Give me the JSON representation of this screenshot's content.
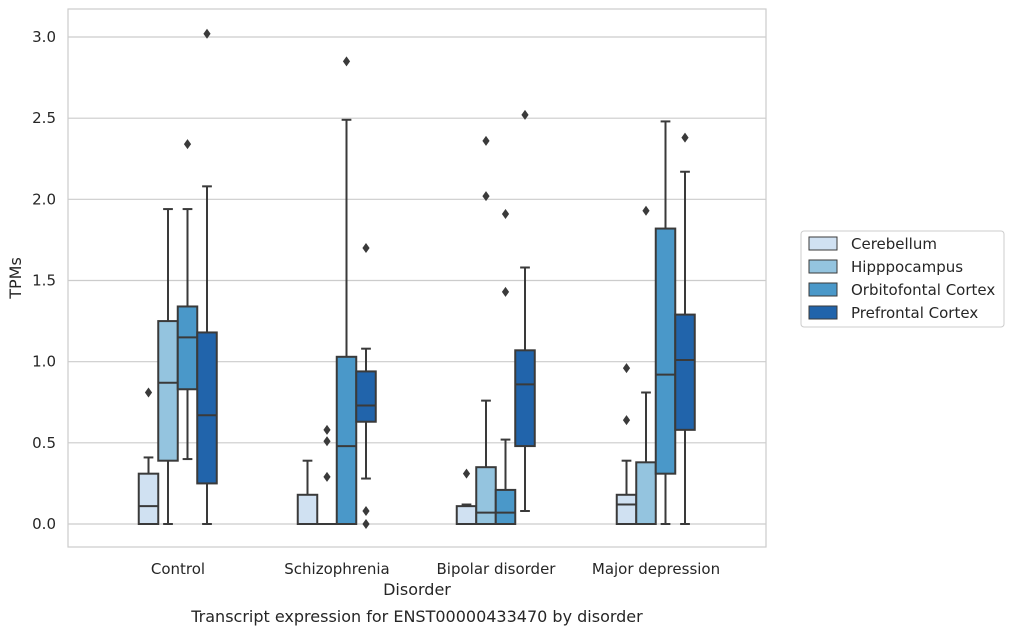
{
  "chart_data": {
    "type": "box",
    "title": "",
    "caption": "Transcript expression for ENST00000433470 by disorder",
    "xlabel": "Disorder",
    "ylabel": "TPMs",
    "ylim": [
      -0.15,
      3.18
    ],
    "yticks": [
      "0.0",
      "0.5",
      "1.0",
      "1.5",
      "2.0",
      "2.5",
      "3.0"
    ],
    "ytick_values": [
      0,
      0.5,
      1.0,
      1.5,
      2.0,
      2.5,
      3.0
    ],
    "grid": true,
    "legend_position": "right",
    "categories": [
      "Control",
      "Schizophrenia",
      "Bipolar disorder",
      "Major depression"
    ],
    "series": [
      {
        "name": "Cerebellum",
        "color": "#d0e1f2",
        "boxes": [
          {
            "q1": 0.0,
            "median": 0.11,
            "q3": 0.31,
            "whislo": 0.0,
            "whishi": 0.41,
            "fliers": [
              0.81
            ]
          },
          {
            "q1": 0.0,
            "median": 0.0,
            "q3": 0.18,
            "whislo": 0.0,
            "whishi": 0.39,
            "fliers": []
          },
          {
            "q1": 0.0,
            "median": 0.0,
            "q3": 0.11,
            "whislo": 0.0,
            "whishi": 0.12,
            "fliers": [
              0.31
            ]
          },
          {
            "q1": 0.0,
            "median": 0.12,
            "q3": 0.18,
            "whislo": 0.0,
            "whishi": 0.39,
            "fliers": [
              0.64,
              0.96
            ]
          }
        ]
      },
      {
        "name": "Hipppocampus",
        "color": "#94c4df",
        "boxes": [
          {
            "q1": 0.39,
            "median": 0.87,
            "q3": 1.25,
            "whislo": 0.0,
            "whishi": 1.94,
            "fliers": []
          },
          {
            "q1": 0.0,
            "median": 0.0,
            "q3": 0.0,
            "whislo": 0.0,
            "whishi": 0.0,
            "fliers": [
              0.29,
              0.51,
              0.58
            ]
          },
          {
            "q1": 0.0,
            "median": 0.07,
            "q3": 0.35,
            "whislo": 0.0,
            "whishi": 0.76,
            "fliers": [
              2.02,
              2.36
            ]
          },
          {
            "q1": 0.0,
            "median": 0.0,
            "q3": 0.38,
            "whislo": 0.0,
            "whishi": 0.81,
            "fliers": [
              1.93
            ]
          }
        ]
      },
      {
        "name": "Orbitofontal Cortex",
        "color": "#4a98c9",
        "boxes": [
          {
            "q1": 0.83,
            "median": 1.15,
            "q3": 1.34,
            "whislo": 0.4,
            "whishi": 1.94,
            "fliers": [
              2.34
            ]
          },
          {
            "q1": 0.0,
            "median": 0.48,
            "q3": 1.03,
            "whislo": 0.0,
            "whishi": 2.49,
            "fliers": [
              2.85
            ]
          },
          {
            "q1": 0.0,
            "median": 0.07,
            "q3": 0.21,
            "whislo": 0.0,
            "whishi": 0.52,
            "fliers": [
              1.43,
              1.91
            ]
          },
          {
            "q1": 0.31,
            "median": 0.92,
            "q3": 1.82,
            "whislo": 0.0,
            "whishi": 2.48,
            "fliers": []
          }
        ]
      },
      {
        "name": "Prefrontal Cortex",
        "color": "#2164ab",
        "boxes": [
          {
            "q1": 0.25,
            "median": 0.67,
            "q3": 1.18,
            "whislo": 0.0,
            "whishi": 2.08,
            "fliers": [
              3.02
            ]
          },
          {
            "q1": 0.63,
            "median": 0.73,
            "q3": 0.94,
            "whislo": 0.28,
            "whishi": 1.08,
            "fliers": [
              0.0,
              0.08,
              1.7
            ]
          },
          {
            "q1": 0.48,
            "median": 0.86,
            "q3": 1.07,
            "whislo": 0.08,
            "whishi": 1.58,
            "fliers": [
              2.52
            ]
          },
          {
            "q1": 0.58,
            "median": 1.01,
            "q3": 1.29,
            "whislo": 0.0,
            "whishi": 2.17,
            "fliers": [
              2.38
            ]
          }
        ]
      }
    ]
  }
}
